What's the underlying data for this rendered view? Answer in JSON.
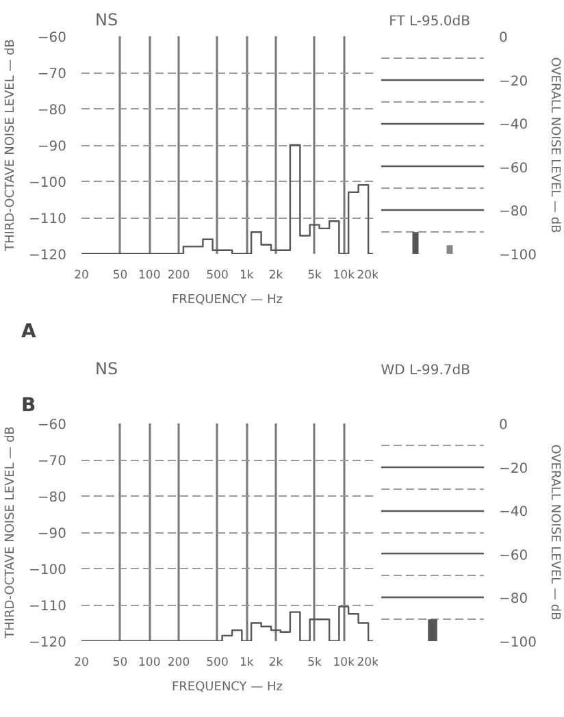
{
  "chart_data": [
    {
      "type": "step",
      "title": "NS",
      "xlabel": "FREQUENCY — Hz",
      "ylabel": "THIRD-OCTAVE NOISE LEVEL — dB",
      "annotations": [
        "A"
      ],
      "log": "x",
      "grid": true,
      "line_style": "solid",
      "marker": "none",
      "x": [
        20,
        25,
        31.5,
        40,
        50,
        63,
        80,
        100,
        125,
        160,
        200,
        250,
        315,
        400,
        500,
        630,
        800,
        1000,
        1250,
        1600,
        2000,
        2500,
        3150,
        4000,
        5000,
        6300,
        8000,
        10000,
        12500,
        16000,
        20000
      ],
      "series": [
        {
          "color": "#555555",
          "values": [
            -120,
            -120,
            -120,
            -120,
            -120,
            -120,
            -120,
            -120,
            -120,
            -120,
            -120,
            -118,
            -118,
            -116,
            -119,
            -119,
            -120,
            -120,
            -114,
            -117.5,
            -119,
            -119,
            -90,
            -115,
            -112,
            -113,
            -111,
            -120,
            -103,
            -101,
            -120
          ]
        }
      ],
      "xlim": [
        20,
        20000
      ],
      "ylim": [
        -120,
        -60
      ],
      "xticks": [
        20,
        50,
        100,
        200,
        500,
        {
          "value": 1000,
          "label": "1k"
        },
        {
          "value": 2000,
          "label": "2k"
        },
        {
          "value": 5000,
          "label": "5k"
        },
        {
          "value": 10000,
          "label": "10k"
        },
        {
          "value": 20000,
          "label": "20k"
        }
      ],
      "yticks": [
        -120,
        -110,
        -100,
        -90,
        -80,
        -70,
        -60
      ]
    },
    {
      "type": "bar",
      "title": "FT L-95.0dB",
      "y2label": "OVERALL NOISE LEVEL — dB",
      "categories": [
        null,
        null
      ],
      "base": [
        -100,
        -100
      ],
      "values": [
        10,
        4
      ],
      "colors": [
        "#555555",
        "#888888"
      ],
      "ylim": [
        -100,
        0
      ],
      "yticks": [
        -100,
        -80,
        -60,
        -40,
        -20,
        0
      ],
      "grid": "y",
      "tick_labels": "y"
    },
    {
      "type": "step",
      "title": "NS",
      "xlabel": "FREQUENCY — Hz",
      "ylabel": "THIRD-OCTAVE NOISE LEVEL — dB",
      "annotations": [
        "B"
      ],
      "log": "x",
      "grid": true,
      "line_style": "solid",
      "marker": "none",
      "x": [
        20,
        25,
        31.5,
        40,
        50,
        63,
        80,
        100,
        125,
        160,
        200,
        250,
        315,
        400,
        500,
        630,
        800,
        1000,
        1250,
        1600,
        2000,
        2500,
        3150,
        4000,
        5000,
        6300,
        8000,
        10000,
        12500,
        16000,
        20000
      ],
      "series": [
        {
          "color": "#555555",
          "values": [
            -120,
            -120,
            -120,
            -120,
            -120,
            -120,
            -120,
            -120,
            -120,
            -120,
            -120,
            -120,
            -120,
            -120,
            -120,
            -118.5,
            -117,
            -120,
            -115,
            -116,
            -117,
            -117.5,
            -112,
            -120,
            -114,
            -114,
            -120,
            -110.5,
            -112.5,
            -115,
            -120
          ]
        }
      ],
      "xlim": [
        20,
        20000
      ],
      "ylim": [
        -120,
        -60
      ],
      "xticks": [
        20,
        50,
        100,
        200,
        500,
        {
          "value": 1000,
          "label": "1k"
        },
        {
          "value": 2000,
          "label": "2k"
        },
        {
          "value": 5000,
          "label": "5k"
        },
        {
          "value": 10000,
          "label": "10k"
        },
        {
          "value": 20000,
          "label": "20k"
        }
      ],
      "yticks": [
        -120,
        -110,
        -100,
        -90,
        -80,
        -70,
        -60
      ]
    },
    {
      "type": "bar",
      "title": "WD L-99.7dB",
      "y2label": "OVERALL NOISE LEVEL — dB",
      "categories": [
        null
      ],
      "base": [
        -100
      ],
      "values": [
        10
      ],
      "colors": [
        "#555555"
      ],
      "ylim": [
        -100,
        0
      ],
      "yticks": [
        -100,
        -80,
        -60,
        -40,
        -20,
        0
      ],
      "grid": "y",
      "tick_labels": "y"
    }
  ]
}
